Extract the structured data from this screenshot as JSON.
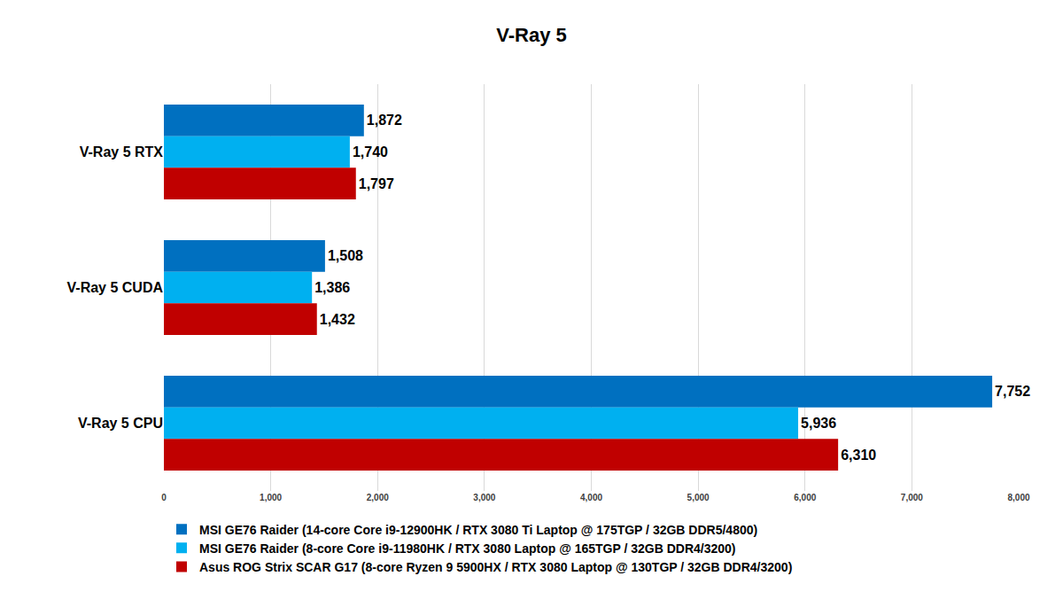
{
  "chart_data": {
    "type": "bar",
    "title": "V-Ray 5",
    "orientation": "horizontal",
    "categories": [
      "V-Ray 5 RTX",
      "V-Ray 5 CUDA",
      "V-Ray 5 CPU"
    ],
    "series": [
      {
        "name": "MSI GE76 Raider (14-core Core i9-12900HK / RTX 3080 Ti Laptop @ 175TGP / 32GB DDR5/4800)",
        "color": "#0070C0",
        "values": [
          1872,
          1508,
          7752
        ],
        "value_labels": [
          "1,872",
          "1,508",
          "7,752"
        ]
      },
      {
        "name": "MSI GE76 Raider (8-core Core i9-11980HK / RTX 3080 Laptop @ 165TGP / 32GB DDR4/3200)",
        "color": "#00B0F0",
        "values": [
          1740,
          1386,
          5936
        ],
        "value_labels": [
          "1,740",
          "1,386",
          "5,936"
        ]
      },
      {
        "name": "Asus ROG Strix SCAR G17 (8-core Ryzen 9 5900HX / RTX 3080 Laptop @ 130TGP / 32GB DDR4/3200)",
        "color": "#C00000",
        "values": [
          1797,
          1432,
          6310
        ],
        "value_labels": [
          "1,797",
          "1,432",
          "6,310"
        ]
      }
    ],
    "xlim": [
      0,
      8000
    ],
    "xticks": [
      0,
      {
        "value": 1000,
        "label": "1,000"
      },
      {
        "value": 2000,
        "label": "2,000"
      },
      {
        "value": 3000,
        "label": "3,000"
      },
      {
        "value": 4000,
        "label": "4,000"
      },
      {
        "value": 5000,
        "label": "5,000"
      },
      {
        "value": 6000,
        "label": "6,000"
      },
      {
        "value": 7000,
        "label": "7,000"
      },
      {
        "value": 8000,
        "label": "8,000"
      }
    ],
    "grid": true,
    "data_labels": true,
    "legend": "bottom"
  }
}
